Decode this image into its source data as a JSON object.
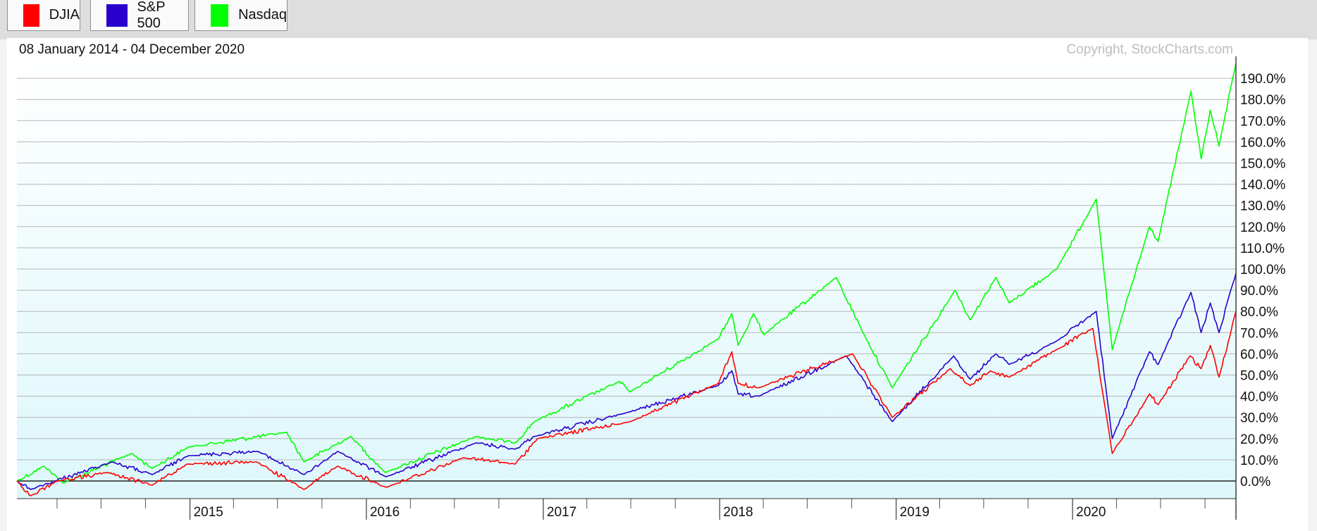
{
  "legend": [
    {
      "label": "DJIA",
      "color": "#ff0000"
    },
    {
      "label": "S&P 500",
      "color": "#2a00cc"
    },
    {
      "label": "Nasdaq",
      "color": "#00ff00"
    }
  ],
  "header": {
    "date_range": "08 January 2014 - 04 December 2020",
    "copyright": "Copyright, StockCharts.com"
  },
  "chart_data": {
    "type": "line",
    "x_start": "2014-01-08",
    "x_end": "2020-12-04",
    "y_unit": "%",
    "ylim": [
      -8,
      195
    ],
    "y_ticks": [
      "0.0%",
      "10.0%",
      "20.0%",
      "30.0%",
      "40.0%",
      "50.0%",
      "60.0%",
      "70.0%",
      "80.0%",
      "90.0%",
      "100.0%",
      "110.0%",
      "120.0%",
      "130.0%",
      "140.0%",
      "150.0%",
      "160.0%",
      "170.0%",
      "180.0%",
      "190.0%"
    ],
    "x_ticks": [
      "2015",
      "2016",
      "2017",
      "2018",
      "2019",
      "2020"
    ],
    "grid": true,
    "legend_position": "top-left",
    "series": [
      {
        "name": "DJIA",
        "color": "#ff0000",
        "x": [
          "2014-01-08",
          "2014-02-05",
          "2014-04-01",
          "2014-07-15",
          "2014-10-15",
          "2014-12-26",
          "2015-05-19",
          "2015-08-25",
          "2015-11-03",
          "2016-02-11",
          "2016-07-20",
          "2016-11-04",
          "2016-12-20",
          "2017-06-30",
          "2017-12-29",
          "2018-01-26",
          "2018-02-08",
          "2018-03-23",
          "2018-10-03",
          "2018-12-24",
          "2019-04-23",
          "2019-06-03",
          "2019-07-15",
          "2019-08-23",
          "2019-11-29",
          "2020-02-12",
          "2020-03-23",
          "2020-06-08",
          "2020-06-26",
          "2020-08-31",
          "2020-09-23",
          "2020-10-12",
          "2020-10-30",
          "2020-12-04"
        ],
        "y": [
          0,
          -7,
          0,
          4,
          -2,
          8,
          9,
          -4,
          7,
          -3,
          11,
          8,
          20,
          28,
          46,
          61,
          46,
          44,
          60,
          30,
          53,
          45,
          52,
          49,
          62,
          72,
          13,
          41,
          36,
          59,
          53,
          64,
          49,
          80
        ]
      },
      {
        "name": "S&P 500",
        "color": "#2a00cc",
        "x": [
          "2014-01-08",
          "2014-02-05",
          "2014-07-24",
          "2014-10-15",
          "2014-12-29",
          "2015-05-21",
          "2015-08-25",
          "2015-11-03",
          "2016-02-11",
          "2016-08-15",
          "2016-11-04",
          "2016-12-13",
          "2017-06-19",
          "2017-12-29",
          "2018-01-26",
          "2018-02-08",
          "2018-03-23",
          "2018-09-20",
          "2018-12-24",
          "2019-04-30",
          "2019-06-03",
          "2019-07-26",
          "2019-08-23",
          "2019-11-29",
          "2020-02-19",
          "2020-03-23",
          "2020-06-08",
          "2020-06-26",
          "2020-09-02",
          "2020-09-23",
          "2020-10-12",
          "2020-10-30",
          "2020-12-04"
        ],
        "y": [
          0,
          -4,
          9,
          3,
          12,
          14,
          3,
          14,
          2,
          18,
          15,
          21,
          32,
          45,
          52,
          41,
          40,
          59,
          28,
          59,
          48,
          60,
          55,
          66,
          80,
          20,
          61,
          55,
          89,
          70,
          84,
          70,
          98
        ]
      },
      {
        "name": "Nasdaq",
        "color": "#00ff00",
        "x": [
          "2014-01-08",
          "2014-03-05",
          "2014-04-14",
          "2014-09-02",
          "2014-10-15",
          "2014-12-29",
          "2015-07-20",
          "2015-08-25",
          "2015-11-30",
          "2016-02-09",
          "2016-08-15",
          "2016-11-04",
          "2016-12-13",
          "2017-06-08",
          "2017-06-29",
          "2017-12-29",
          "2018-01-26",
          "2018-02-08",
          "2018-03-12",
          "2018-04-02",
          "2018-08-30",
          "2018-10-29",
          "2018-12-24",
          "2019-05-03",
          "2019-06-03",
          "2019-07-26",
          "2019-08-23",
          "2019-11-29",
          "2020-02-19",
          "2020-03-23",
          "2020-06-08",
          "2020-06-26",
          "2020-09-02",
          "2020-09-23",
          "2020-10-12",
          "2020-10-30",
          "2020-12-04"
        ],
        "y": [
          0,
          7,
          -1,
          13,
          6,
          16,
          23,
          9,
          21,
          4,
          21,
          18,
          28,
          47,
          42,
          67,
          79,
          64,
          79,
          69,
          96,
          68,
          44,
          90,
          76,
          96,
          84,
          100,
          133,
          62,
          120,
          113,
          184,
          152,
          175,
          158,
          197
        ]
      }
    ]
  }
}
